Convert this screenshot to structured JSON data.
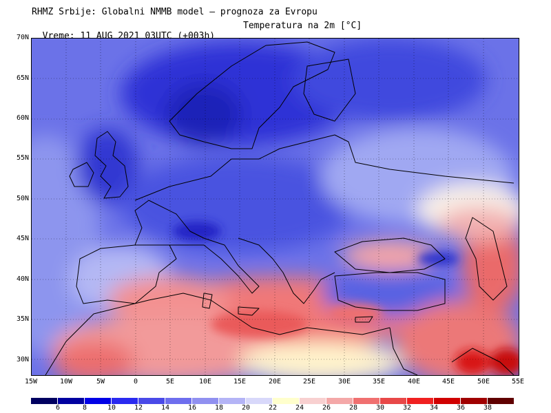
{
  "header": {
    "line1": "RHMZ Srbije: Globalni NMMB model — prognoza za Evropu",
    "line2_time": "Vreme: 11 AUG 2021 03UTC (+003h)",
    "line2_field": "Temperatura na 2m [°C]"
  },
  "map": {
    "lat_labels": [
      "70N",
      "65N",
      "60N",
      "55N",
      "50N",
      "45N",
      "40N",
      "35N",
      "30N"
    ],
    "lon_labels": [
      "15W",
      "10W",
      "5W",
      "0",
      "5E",
      "10E",
      "15E",
      "20E",
      "25E",
      "30E",
      "35E",
      "40E",
      "45E",
      "50E",
      "55E"
    ],
    "lat_range": [
      28,
      70
    ],
    "lon_range": [
      -15,
      55
    ],
    "grid": "dotted",
    "regions": {
      "atlantic": "cool 14-18",
      "scandinavia": "cold 6-12",
      "central_europe": "cool 12-16",
      "mediterranean": "warm 28-32",
      "north_africa": "hot 30-36",
      "middle_east": "hot 32-38"
    }
  },
  "colorbar": {
    "labels": [
      "6",
      "8",
      "10",
      "12",
      "14",
      "16",
      "18",
      "20",
      "22",
      "24",
      "26",
      "28",
      "30",
      "32",
      "34",
      "36",
      "38"
    ],
    "colors": [
      "#000060",
      "#0000a0",
      "#0000e6",
      "#2a2af0",
      "#4a4ae8",
      "#6e6eee",
      "#9090f0",
      "#b4b4f6",
      "#d8d8fa",
      "#ffffcc",
      "#f8d0d0",
      "#f4a8a8",
      "#f07070",
      "#e84848",
      "#f02020",
      "#d00000",
      "#a00000",
      "#600000"
    ]
  }
}
